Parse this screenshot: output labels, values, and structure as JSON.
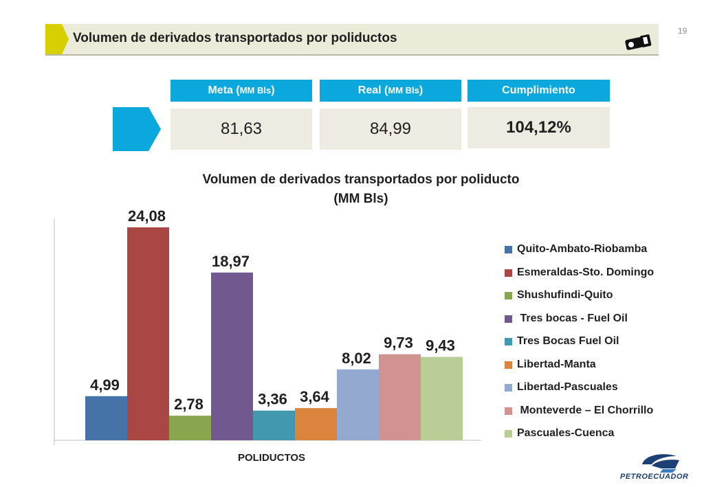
{
  "page": {
    "number": "19",
    "title": "Volumen de derivados transportados por poliductos"
  },
  "kpis": [
    {
      "label": "Meta (",
      "unit": "MM Bls",
      "suffix": ")",
      "value": "81,63"
    },
    {
      "label": "Real (",
      "unit": "MM Bls",
      "suffix": ")",
      "value": "84,99"
    },
    {
      "label": "Cumplimiento",
      "unit": "",
      "suffix": "",
      "value": "104,12%"
    }
  ],
  "colors": {
    "accent": "#0ba8dd",
    "title_chevron": "#d7d000",
    "kpi_bg": "#eeebe3",
    "logo": "#1c3f74"
  },
  "icons": {
    "title": "camera-icon",
    "logo": "petroecuador-logo"
  },
  "logo_text": "PETROECUADOR",
  "chart_data": {
    "type": "bar",
    "title": "Volumen de derivados transportados por poliducto",
    "subtitle": "(MM Bls)",
    "xlabel": "POLIDUCTOS",
    "ylabel": "",
    "ylim": [
      0,
      24.08
    ],
    "grid": false,
    "legend_position": "right",
    "categories": [
      "Quito-Ambato-Riobamba",
      "Esmeraldas-Sto. Domingo",
      "Shushufindi-Quito",
      " Tres bocas - Fuel Oil",
      "Tres Bocas Fuel Oil",
      "Libertad-Manta",
      "Libertad-Pascuales",
      " Monteverde – El Chorrillo",
      "Pascuales-Cuenca"
    ],
    "values": [
      4.99,
      24.08,
      2.78,
      18.97,
      3.36,
      3.64,
      8.02,
      9.73,
      9.43
    ],
    "data_labels": [
      "4,99",
      "24,08",
      "2,78",
      "18,97",
      "3,36",
      "3,64",
      "8,02",
      "9,73",
      "9,43"
    ],
    "colors": [
      "#4572a7",
      "#aa4643",
      "#89a54e",
      "#71588f",
      "#4198af",
      "#db843d",
      "#93a9cf",
      "#d19392",
      "#b9cd96"
    ]
  }
}
